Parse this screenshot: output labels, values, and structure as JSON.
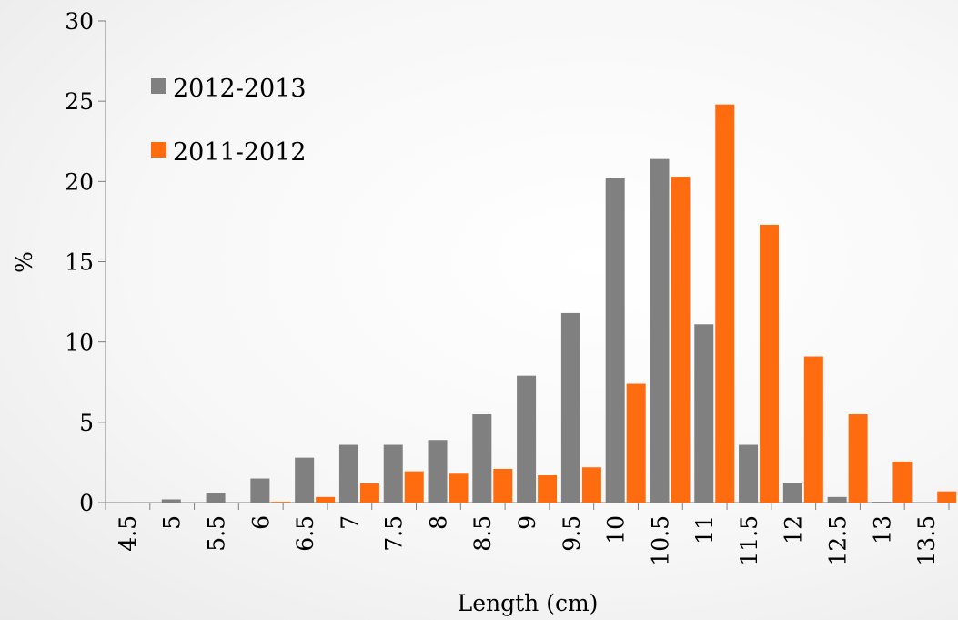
{
  "chart_data": {
    "type": "bar",
    "title": "",
    "xlabel": "Length (cm)",
    "ylabel": "%",
    "ylim": [
      0,
      30
    ],
    "yticks": [
      0,
      5,
      10,
      15,
      20,
      25,
      30
    ],
    "grid": false,
    "legend_position": "top-left",
    "categories": [
      "4.5",
      "5",
      "5.5",
      "6",
      "6.5",
      "7",
      "7.5",
      "8",
      "8.5",
      "9",
      "9.5",
      "10",
      "10.5",
      "11",
      "11.5",
      "12",
      "12.5",
      "13",
      "13.5"
    ],
    "series": [
      {
        "name": "2012-2013",
        "color": "#808080",
        "values": [
          0,
          0.2,
          0.6,
          1.5,
          2.8,
          3.6,
          3.6,
          3.9,
          5.5,
          7.9,
          11.8,
          20.2,
          21.4,
          11.1,
          3.6,
          1.2,
          0.35,
          0.05,
          0
        ]
      },
      {
        "name": "2011-2012",
        "color": "#ff6b0f",
        "values": [
          0,
          0,
          0,
          0.05,
          0.35,
          1.2,
          1.95,
          1.8,
          2.1,
          1.7,
          2.2,
          7.4,
          20.3,
          24.8,
          17.3,
          9.1,
          5.5,
          2.55,
          0.7
        ]
      }
    ]
  }
}
